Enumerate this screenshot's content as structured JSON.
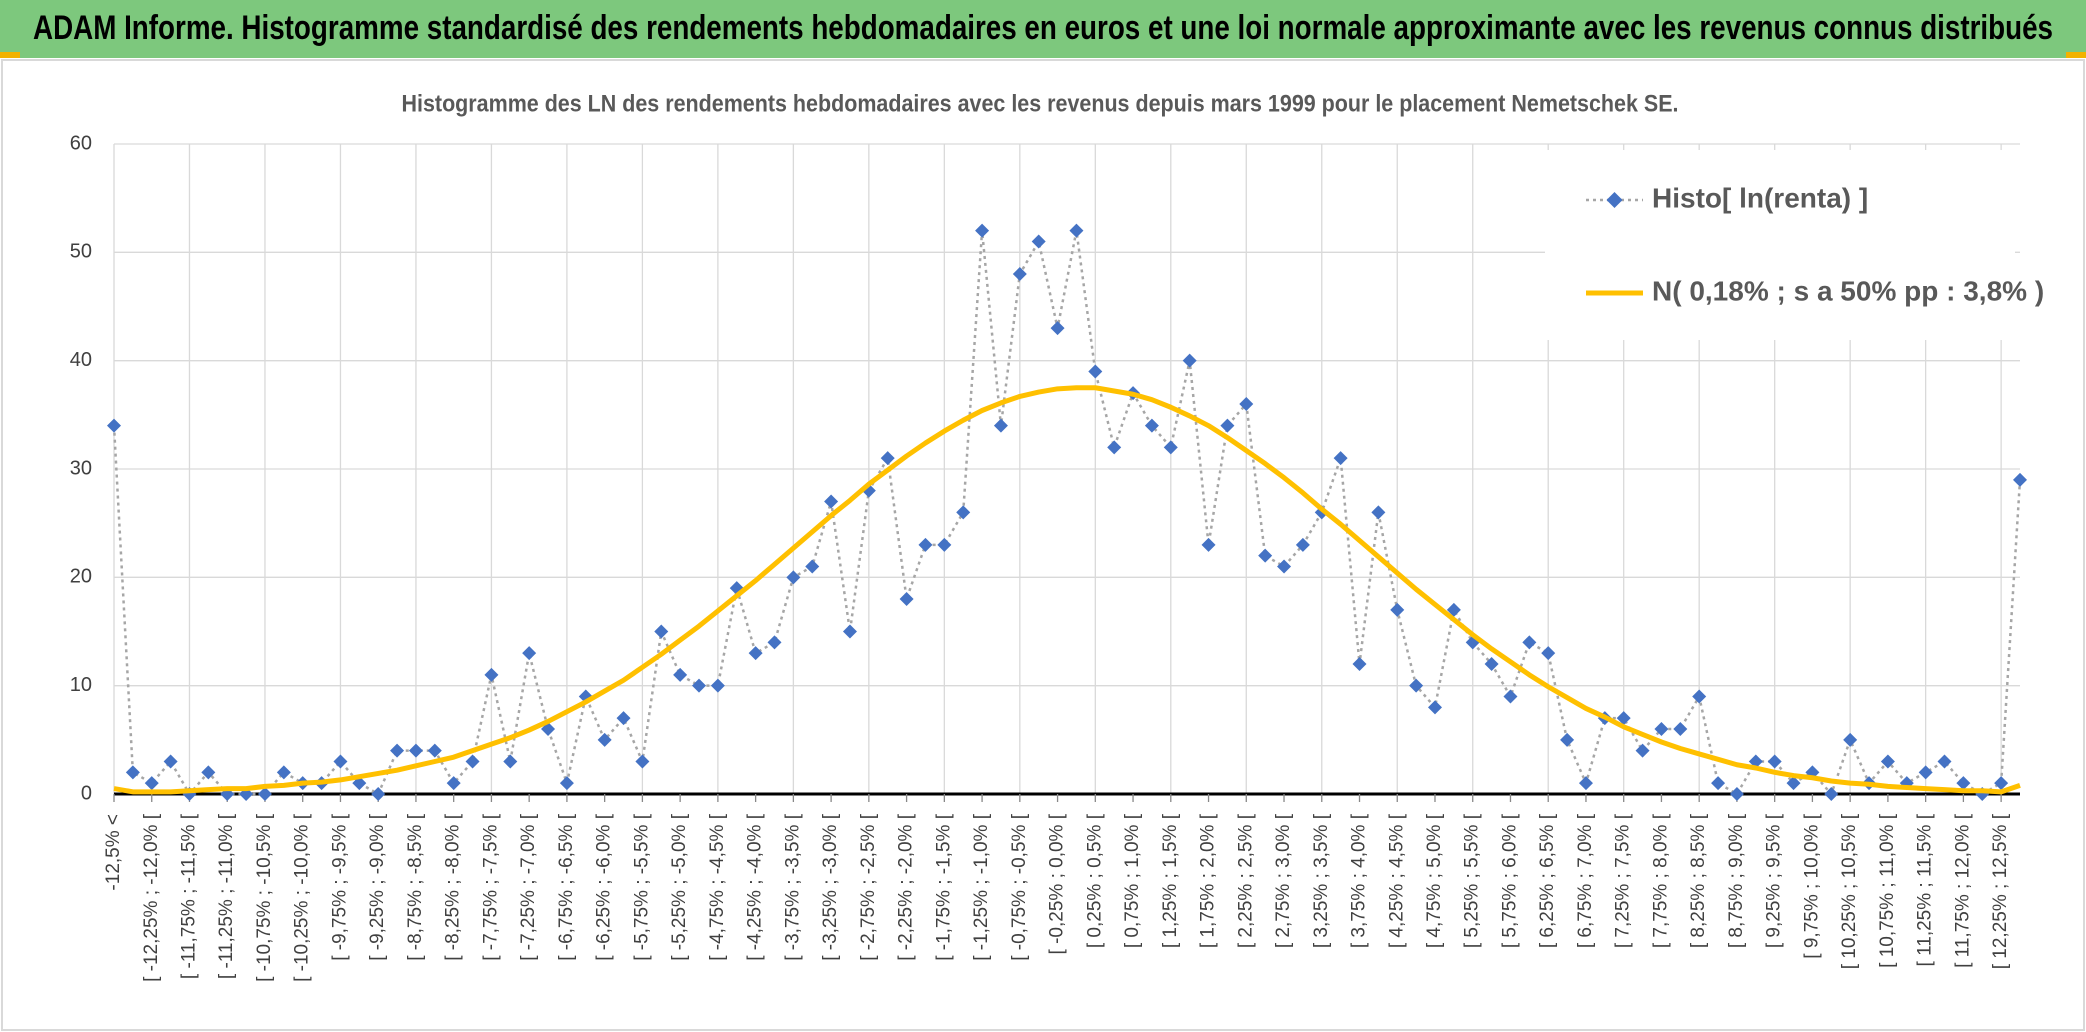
{
  "header": {
    "title": "ADAM Informe. Histogramme standardisé des rendements hebdomadaires en euros et une loi normale approximante avec les revenus connus distribués"
  },
  "chart_data": {
    "type": "line",
    "title": "Histogramme des LN des rendements hebdomadaires avec les revenus depuis mars 1999 pour le placement Nemetschek SE.",
    "categories": [
      "-12,5% <",
      null,
      "[ -12,25% ; -12,0% [",
      null,
      "[ -11,75% ; -11,5% [",
      null,
      "[ -11,25% ; -11,0% [",
      null,
      "[ -10,75% ; -10,5% [",
      null,
      "[ -10,25% ; -10,0% [",
      null,
      "[ -9,75% ; -9,5% [",
      null,
      "[ -9,25% ; -9,0% [",
      null,
      "[ -8,75% ; -8,5% [",
      null,
      "[ -8,25% ; -8,0% [",
      null,
      "[ -7,75% ; -7,5% [",
      null,
      "[ -7,25% ; -7,0% [",
      null,
      "[ -6,75% ; -6,5% [",
      null,
      "[ -6,25% ; -6,0% [",
      null,
      "[ -5,75% ; -5,5% [",
      null,
      "[ -5,25% ; -5,0% [",
      null,
      "[ -4,75% ; -4,5% [",
      null,
      "[ -4,25% ; -4,0% [",
      null,
      "[ -3,75% ; -3,5% [",
      null,
      "[ -3,25% ; -3,0% [",
      null,
      "[ -2,75% ; -2,5% [",
      null,
      "[ -2,25% ; -2,0% [",
      null,
      "[ -1,75% ; -1,5% [",
      null,
      "[ -1,25% ; -1,0% [",
      null,
      "[ -0,75% ; -0,5% [",
      null,
      "[ -0,25% ; 0,0% [",
      null,
      "[ 0,25% ; 0,5% [",
      null,
      "[ 0,75% ; 1,0% [",
      null,
      "[ 1,25% ; 1,5% [",
      null,
      "[ 1,75% ; 2,0% [",
      null,
      "[ 2,25% ; 2,5% [",
      null,
      "[ 2,75% ; 3,0% [",
      null,
      "[ 3,25% ; 3,5% [",
      null,
      "[ 3,75% ; 4,0% [",
      null,
      "[ 4,25% ; 4,5% [",
      null,
      "[ 4,75% ; 5,0% [",
      null,
      "[ 5,25% ; 5,5% [",
      null,
      "[ 5,75% ; 6,0% [",
      null,
      "[ 6,25% ; 6,5% [",
      null,
      "[ 6,75% ; 7,0% [",
      null,
      "[ 7,25% ; 7,5% [",
      null,
      "[ 7,75% ; 8,0% [",
      null,
      "[ 8,25% ; 8,5% [",
      null,
      "[ 8,75% ; 9,0% [",
      null,
      "[ 9,25% ; 9,5% [",
      null,
      "[ 9,75% ; 10,0% [",
      null,
      "[ 10,25% ; 10,5% [",
      null,
      "[ 10,75% ; 11,0% [",
      null,
      "[ 11,25% ; 11,5% [",
      null,
      "[ 11,75% ; 12,0% [",
      null,
      "[ 12,25% ; 12,5% [",
      null
    ],
    "series": [
      {
        "name": "Histo[ ln(renta) ]",
        "color": "#4472c4",
        "line_color": "#a6a6a6",
        "values": [
          34,
          2,
          1,
          3,
          0,
          2,
          0,
          0,
          0,
          2,
          1,
          1,
          3,
          1,
          0,
          4,
          4,
          4,
          1,
          3,
          11,
          3,
          13,
          6,
          1,
          9,
          5,
          7,
          3,
          15,
          11,
          10,
          10,
          19,
          13,
          14,
          20,
          21,
          27,
          15,
          28,
          31,
          18,
          23,
          23,
          26,
          52,
          34,
          48,
          51,
          43,
          52,
          39,
          32,
          37,
          34,
          32,
          40,
          23,
          34,
          36,
          22,
          21,
          23,
          26,
          31,
          12,
          26,
          17,
          10,
          8,
          17,
          14,
          12,
          9,
          14,
          13,
          5,
          1,
          7,
          7,
          4,
          6,
          6,
          9,
          1,
          0,
          3,
          3,
          1,
          2,
          0,
          5,
          1,
          3,
          1,
          2,
          3,
          1,
          0,
          1,
          29
        ]
      },
      {
        "name": "N( 0,18% ; s a 50% pp : 3,8% )",
        "color": "#ffc000",
        "values": [
          0.5,
          0.2,
          0.2,
          0.2,
          0.3,
          0.4,
          0.5,
          0.5,
          0.7,
          0.8,
          1.0,
          1.1,
          1.3,
          1.6,
          1.9,
          2.2,
          2.6,
          3.0,
          3.4,
          4.0,
          4.6,
          5.2,
          5.9,
          6.7,
          7.6,
          8.5,
          9.5,
          10.5,
          11.7,
          12.9,
          14.2,
          15.5,
          16.9,
          18.3,
          19.7,
          21.2,
          22.7,
          24.2,
          25.7,
          27.1,
          28.6,
          29.9,
          31.2,
          32.4,
          33.5,
          34.5,
          35.4,
          36.1,
          36.7,
          37.1,
          37.4,
          37.5,
          37.5,
          37.2,
          36.9,
          36.4,
          35.7,
          34.9,
          34.0,
          32.9,
          31.7,
          30.5,
          29.2,
          27.8,
          26.3,
          24.9,
          23.4,
          21.9,
          20.4,
          18.9,
          17.5,
          16.1,
          14.7,
          13.4,
          12.2,
          11.0,
          9.9,
          8.9,
          7.9,
          7.1,
          6.2,
          5.5,
          4.8,
          4.2,
          3.7,
          3.2,
          2.7,
          2.4,
          2.0,
          1.7,
          1.5,
          1.2,
          1.0,
          0.9,
          0.7,
          0.6,
          0.5,
          0.4,
          0.3,
          0.3,
          0.2,
          0.8
        ]
      }
    ],
    "ylim": [
      0,
      60
    ],
    "yticks": [
      0,
      10,
      20,
      30,
      40,
      50,
      60
    ],
    "grid": true,
    "legend": "top-right"
  }
}
